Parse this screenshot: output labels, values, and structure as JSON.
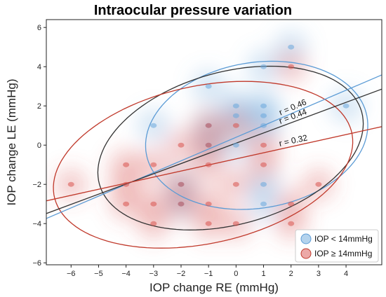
{
  "chart_data": {
    "type": "scatter",
    "title": "Intraocular pressure variation",
    "xlabel": "IOP change RE (mmHg)",
    "ylabel": "IOP change LE (mmHg)",
    "xlim": [
      -6.9,
      5.3
    ],
    "ylim": [
      -6.1,
      6.4
    ],
    "xticks": [
      "−6",
      "−5",
      "−4",
      "−3",
      "−2",
      "−1",
      "0",
      "1",
      "2",
      "3",
      "4"
    ],
    "yticks": [
      "−6",
      "−4",
      "−2",
      "0",
      "2",
      "4",
      "6"
    ],
    "xtick_values": [
      -6,
      -5,
      -4,
      -3,
      -2,
      -1,
      0,
      1,
      2,
      3,
      4
    ],
    "ytick_values": [
      -6,
      -4,
      -2,
      0,
      2,
      4,
      6
    ],
    "grid": false,
    "legend_position": "bottom-right",
    "colors": {
      "blue": "#5b9bd5",
      "red": "#c0392b",
      "black": "#333333"
    },
    "series": [
      {
        "name": "IOP < 14mmHg",
        "color": "#6aa8dc",
        "points": [
          [
            2,
            5
          ],
          [
            1,
            4
          ],
          [
            -1,
            3
          ],
          [
            0,
            2
          ],
          [
            1,
            2
          ],
          [
            4,
            2
          ],
          [
            0,
            1.5
          ],
          [
            1,
            1.5
          ],
          [
            -3,
            1
          ],
          [
            -1,
            1
          ],
          [
            1,
            1
          ],
          [
            -1,
            0
          ],
          [
            0,
            0
          ],
          [
            -2,
            -2
          ],
          [
            1,
            -2
          ],
          [
            1,
            -3
          ],
          [
            -2,
            -3
          ]
        ]
      },
      {
        "name": "IOP ≥ 14mmHg",
        "color": "#d9534f",
        "points": [
          [
            2,
            4
          ],
          [
            -1,
            1
          ],
          [
            0,
            1
          ],
          [
            -2,
            0
          ],
          [
            -1,
            0
          ],
          [
            1,
            0
          ],
          [
            -4,
            -1
          ],
          [
            -3,
            -1
          ],
          [
            -1,
            -1
          ],
          [
            1,
            -1
          ],
          [
            -6,
            -2
          ],
          [
            -4,
            -2
          ],
          [
            -2,
            -2
          ],
          [
            0,
            -2
          ],
          [
            3,
            -2
          ],
          [
            -4,
            -3
          ],
          [
            -3,
            -3
          ],
          [
            -2,
            -3
          ],
          [
            -1,
            -3
          ],
          [
            2,
            -3
          ],
          [
            -3,
            -4
          ],
          [
            -1,
            -4
          ],
          [
            0,
            -4
          ],
          [
            2,
            -4
          ]
        ]
      }
    ],
    "correlations": [
      {
        "label": "r = 0.46",
        "color": "#5b9bd5",
        "slope": 0.6,
        "intercept": 0.4
      },
      {
        "label": "r = 0.44",
        "color": "#333333",
        "slope": 0.52,
        "intercept": 0.1
      },
      {
        "label": "r = 0.32",
        "color": "#c0392b",
        "slope": 0.31,
        "intercept": -0.7
      }
    ],
    "ellipses": [
      {
        "series": "IOP < 14mmHg",
        "color": "#5b9bd5",
        "cx": 0.75,
        "cy": 0.5,
        "rx": 4.2,
        "ry": 3.6,
        "angle_deg": 32
      },
      {
        "series": "all",
        "color": "#333333",
        "cx": -0.2,
        "cy": -0.15,
        "rx": 5.2,
        "ry": 3.7,
        "angle_deg": 32
      },
      {
        "series": "IOP ≥ 14mmHg",
        "color": "#c0392b",
        "cx": -1.2,
        "cy": -1.0,
        "rx": 5.7,
        "ry": 3.9,
        "angle_deg": 24
      }
    ]
  }
}
